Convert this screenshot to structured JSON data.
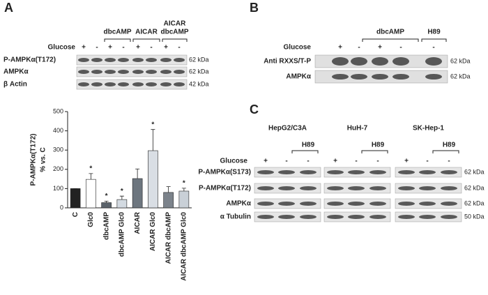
{
  "panel_a": {
    "letter": "A",
    "treatments": [
      {
        "lines": [
          "dbcAMP"
        ]
      },
      {
        "lines": [
          "AICAR"
        ]
      },
      {
        "lines": [
          "AICAR",
          "dbcAMP"
        ]
      }
    ],
    "condition": "Glucose",
    "signs": [
      "+",
      "-",
      "+",
      "-",
      "+",
      "-",
      "+",
      "-"
    ],
    "rows": [
      {
        "label": "P-AMPKα(T172)",
        "size": "62 kDa"
      },
      {
        "label": "AMPKα",
        "size": "62 kDa"
      },
      {
        "label": "β Actin",
        "size": "42 kDa"
      }
    ]
  },
  "chart_data": {
    "type": "bar",
    "ylabel": [
      "P-AMPKα(T172)",
      "% vs. C"
    ],
    "categories": [
      "C",
      "Glc0",
      "dbcAMP",
      "dbcAMP Glc0",
      "AICAR",
      "AICAR Glc0",
      "AICAR dbcAMP",
      "AICAR dbcAMP Glc0"
    ],
    "values": [
      100,
      148,
      27,
      43,
      152,
      297,
      80,
      87
    ],
    "errors": [
      0,
      30,
      8,
      18,
      50,
      110,
      30,
      15
    ],
    "colors": [
      "#222222",
      "#ffffff",
      "#5b636b",
      "#d3dae1",
      "#6d767f",
      "#d9dee4",
      "#7c838b",
      "#c9d0d7"
    ],
    "significance": [
      null,
      "*",
      "*",
      "*",
      null,
      "*",
      null,
      "*"
    ],
    "ylim": [
      0,
      500
    ],
    "yticks": [
      0,
      100,
      200,
      300,
      400,
      500
    ]
  },
  "panel_b": {
    "letter": "B",
    "treatments": [
      {
        "lines": [
          "dbcAMP"
        ]
      },
      {
        "lines": [
          "H89"
        ]
      }
    ],
    "condition": "Glucose",
    "signs": [
      "+",
      "-",
      "+",
      "-",
      "-"
    ],
    "rows": [
      {
        "label": "Anti RXXS/T-P",
        "size": "62 kDa"
      },
      {
        "label": "AMPKα",
        "size": "62 kDa"
      }
    ]
  },
  "panel_c": {
    "letter": "C",
    "groups": [
      {
        "label": "HepG2/C3A",
        "treatment": "H89",
        "signs": [
          "+",
          "-",
          "-"
        ]
      },
      {
        "label": "HuH-7",
        "treatment": "H89",
        "signs": [
          "+",
          "-",
          "-"
        ]
      },
      {
        "label": "SK-Hep-1",
        "treatment": "H89",
        "signs": [
          "+",
          "-",
          "-"
        ]
      }
    ],
    "condition": "Glucose",
    "rows": [
      {
        "label": "P-AMPKα(S173)",
        "size": "62 kDa"
      },
      {
        "label": "P-AMPKα(T172)",
        "size": "62 kDa"
      },
      {
        "label": "AMPKα",
        "size": "62 kDa"
      },
      {
        "label": "α Tubulin",
        "size": "50 kDa"
      }
    ]
  }
}
